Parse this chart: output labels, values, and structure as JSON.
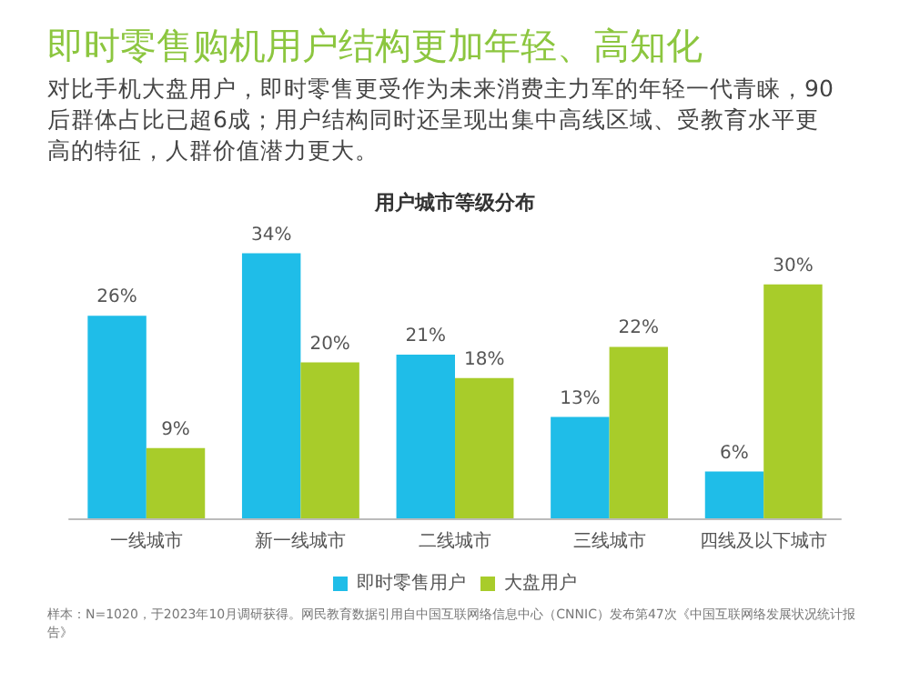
{
  "chart_data": {
    "type": "bar",
    "title": "即时零售购机用户结构更加年轻、高知化",
    "subtitle": "对比手机大盘用户，即时零售更受作为未来消费主力军的年轻一代青睐，90后群体占比已超6成；用户结构同时还呈现出集中高线区域、受教育水平更高的特征，人群价值潜力更大。",
    "annotations": [
      "用户城市等级分布",
      "样本：N=1020，于2023年10月调研获得。网民教育数据引用自中国互联网络信息中心（CNNIC）发布第47次《中国互联网络发展状况统计报告》"
    ],
    "categories": [
      "一线城市",
      "新一线城市",
      "二线城市",
      "三线城市",
      "四线及以下城市"
    ],
    "series": [
      {
        "name": "即时零售用户",
        "color": "#1fbde8",
        "values": [
          26,
          34,
          21,
          13,
          6
        ],
        "value_labels": [
          "26%",
          "34%",
          "21%",
          "13%",
          "6%"
        ]
      },
      {
        "name": "大盘用户",
        "color": "#a8cc2a",
        "values": [
          9,
          20,
          18,
          22,
          30
        ],
        "value_labels": [
          "9%",
          "20%",
          "18%",
          "22%",
          "30%"
        ]
      }
    ],
    "legend": "bottom"
  }
}
